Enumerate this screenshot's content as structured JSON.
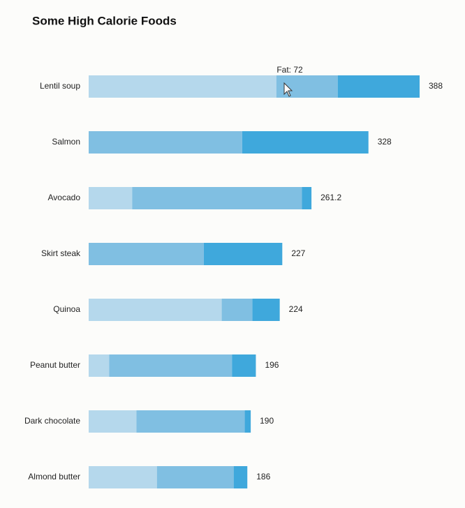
{
  "chart_data": {
    "type": "stacked-bar-horizontal",
    "title": "Some High Calorie Foods",
    "categories": [
      "Lentil soup",
      "Salmon",
      "Avocado",
      "Skirt steak",
      "Quinoa",
      "Peanut butter",
      "Dark chocolate",
      "Almond butter"
    ],
    "series": [
      {
        "color": "#b5d8ec",
        "values": [
          220,
          0,
          51,
          0,
          156,
          24,
          56,
          80
        ]
      },
      {
        "name": "Fat",
        "color": "#80bfe2",
        "values": [
          72,
          180,
          199,
          135,
          36,
          144,
          127,
          90
        ]
      },
      {
        "color": "#3fa8dc",
        "values": [
          96,
          148,
          11.2,
          92,
          32,
          28,
          7,
          16
        ]
      }
    ],
    "totals": [
      388,
      328,
      261.2,
      227,
      224,
      196,
      190,
      186
    ],
    "tooltip": "Fat: 72"
  }
}
